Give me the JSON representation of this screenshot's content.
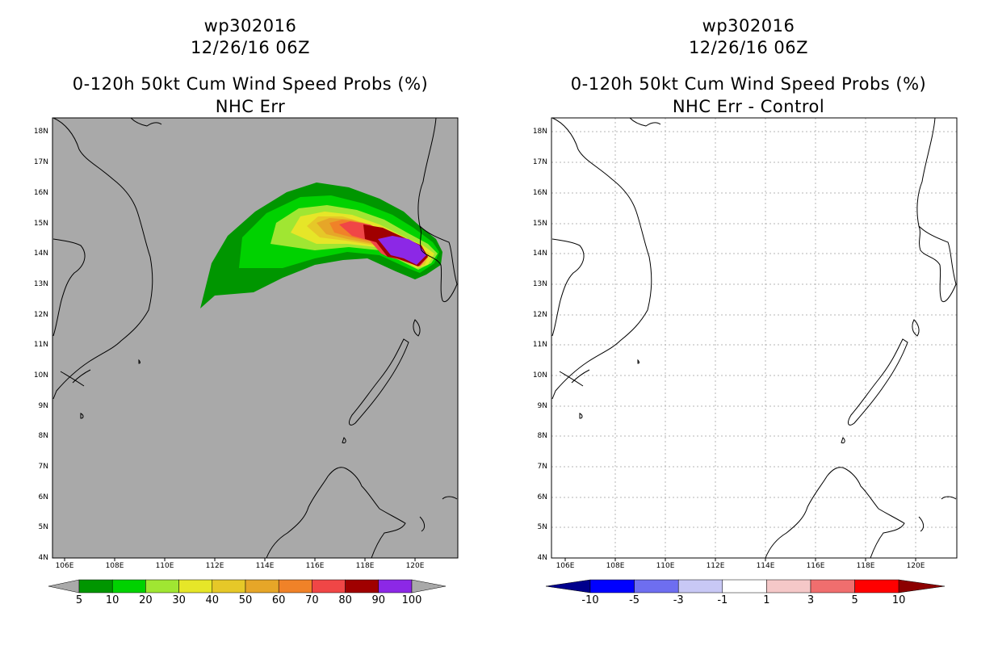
{
  "colors": {
    "left_background": "#a9a9a9",
    "right_background": "#ffffff",
    "coastline": "#000000",
    "grid": "#9a9a9a"
  },
  "left_panel": {
    "title_line1": "wp302016",
    "title_line2": "12/26/16 06Z",
    "title_line3": "0-120h 50kt Cum Wind Speed Probs (%)",
    "title_line4": "NHC Err",
    "x_ticks": [
      "106E",
      "108E",
      "110E",
      "112E",
      "114E",
      "116E",
      "118E",
      "120E"
    ],
    "y_ticks": [
      "4N",
      "5N",
      "6N",
      "7N",
      "8N",
      "9N",
      "10N",
      "11N",
      "12N",
      "13N",
      "14N",
      "15N",
      "16N",
      "17N",
      "18N"
    ],
    "colorbar": {
      "labels": [
        "5",
        "10",
        "20",
        "30",
        "40",
        "50",
        "60",
        "70",
        "80",
        "90",
        "100"
      ],
      "colors": [
        "#009600",
        "#00d200",
        "#a0e632",
        "#e6e628",
        "#e6c828",
        "#e6a628",
        "#f08228",
        "#f04646",
        "#a00000",
        "#8c28e6"
      ],
      "end_color": "#a9a9a9"
    },
    "probability_contours": [
      {
        "level": 5,
        "color": "#009600"
      },
      {
        "level": 10,
        "color": "#00d200"
      },
      {
        "level": 20,
        "color": "#a0e632"
      },
      {
        "level": 30,
        "color": "#e6e628"
      },
      {
        "level": 40,
        "color": "#e6c828"
      },
      {
        "level": 50,
        "color": "#e6a628"
      },
      {
        "level": 60,
        "color": "#f08228"
      },
      {
        "level": 70,
        "color": "#f04646"
      },
      {
        "level": 80,
        "color": "#a00000"
      },
      {
        "level": 90,
        "color": "#8c28e6"
      }
    ]
  },
  "right_panel": {
    "title_line1": "wp302016",
    "title_line2": "12/26/16 06Z",
    "title_line3": "0-120h 50kt Cum Wind Speed Probs (%)",
    "title_line4": "NHC Err - Control",
    "x_ticks": [
      "106E",
      "108E",
      "110E",
      "112E",
      "114E",
      "116E",
      "118E",
      "120E"
    ],
    "y_ticks": [
      "4N",
      "5N",
      "6N",
      "7N",
      "8N",
      "9N",
      "10N",
      "11N",
      "12N",
      "13N",
      "14N",
      "15N",
      "16N",
      "17N",
      "18N"
    ],
    "colorbar": {
      "labels": [
        "-10",
        "-5",
        "-3",
        "-1",
        "1",
        "3",
        "5",
        "10"
      ],
      "colors": [
        "#0000c8",
        "#0000ff",
        "#6e6ef0",
        "#c8c8f5",
        "#ffffff",
        "#f5c8c8",
        "#f06e6e",
        "#ff0000"
      ],
      "low_end_color": "#00008c",
      "high_end_color": "#8c0000"
    }
  }
}
